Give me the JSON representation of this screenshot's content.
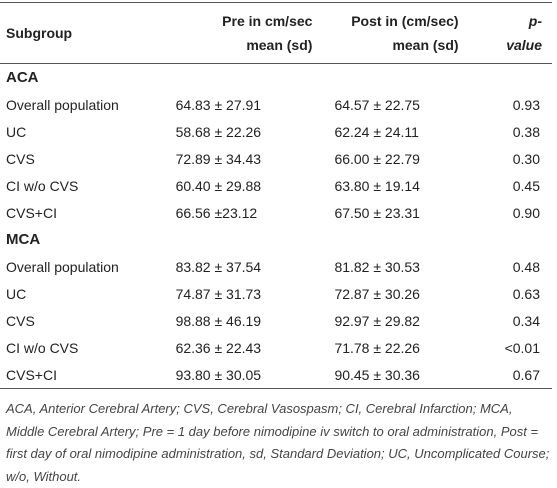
{
  "table": {
    "header": [
      [
        "Subgroup"
      ],
      [
        "Pre in cm/sec",
        "mean (sd)"
      ],
      [
        "Post in (cm/sec)",
        "mean (sd)"
      ],
      [
        "p-value"
      ]
    ],
    "groups": [
      {
        "label": "ACA",
        "rows": [
          [
            "Overall population",
            "64.83 ± 27.91",
            "64.57 ± 22.75",
            "0.93"
          ],
          [
            "UC",
            "58.68 ± 22.26",
            "62.24 ± 24.11",
            "0.38"
          ],
          [
            "CVS",
            "72.89 ± 34.43",
            "66.00 ± 22.79",
            "0.30"
          ],
          [
            "CI w/o CVS",
            "60.40 ± 29.88",
            "63.80 ± 19.14",
            "0.45"
          ],
          [
            "CVS+CI",
            "66.56 ±23.12",
            "67.50 ± 23.31",
            "0.90"
          ]
        ]
      },
      {
        "label": "MCA",
        "rows": [
          [
            "Overall population",
            "83.82 ± 37.54",
            "81.82 ± 30.53",
            "0.48"
          ],
          [
            "UC",
            "74.87 ± 31.73",
            "72.87 ± 30.26",
            "0.63"
          ],
          [
            "CVS",
            "98.88 ± 46.19",
            "92.97 ± 29.82",
            "0.34"
          ],
          [
            "CI w/o CVS",
            "62.36 ± 22.43",
            "71.78 ± 22.26",
            "<0.01"
          ],
          [
            "CVS+CI",
            "93.80 ± 30.05",
            "90.45 ± 30.36",
            "0.67"
          ]
        ]
      }
    ],
    "footnote": "ACA, Anterior Cerebral Artery; CVS, Cerebral Vasospasm; CI, Cerebral Infarction; MCA, Middle Cerebral Artery; Pre = 1 day before nimodipine iv switch to oral administration, Post = first day of oral nimodipine administration, sd, Standard Deviation; UC, Uncomplicated Course; w/o, Without."
  }
}
